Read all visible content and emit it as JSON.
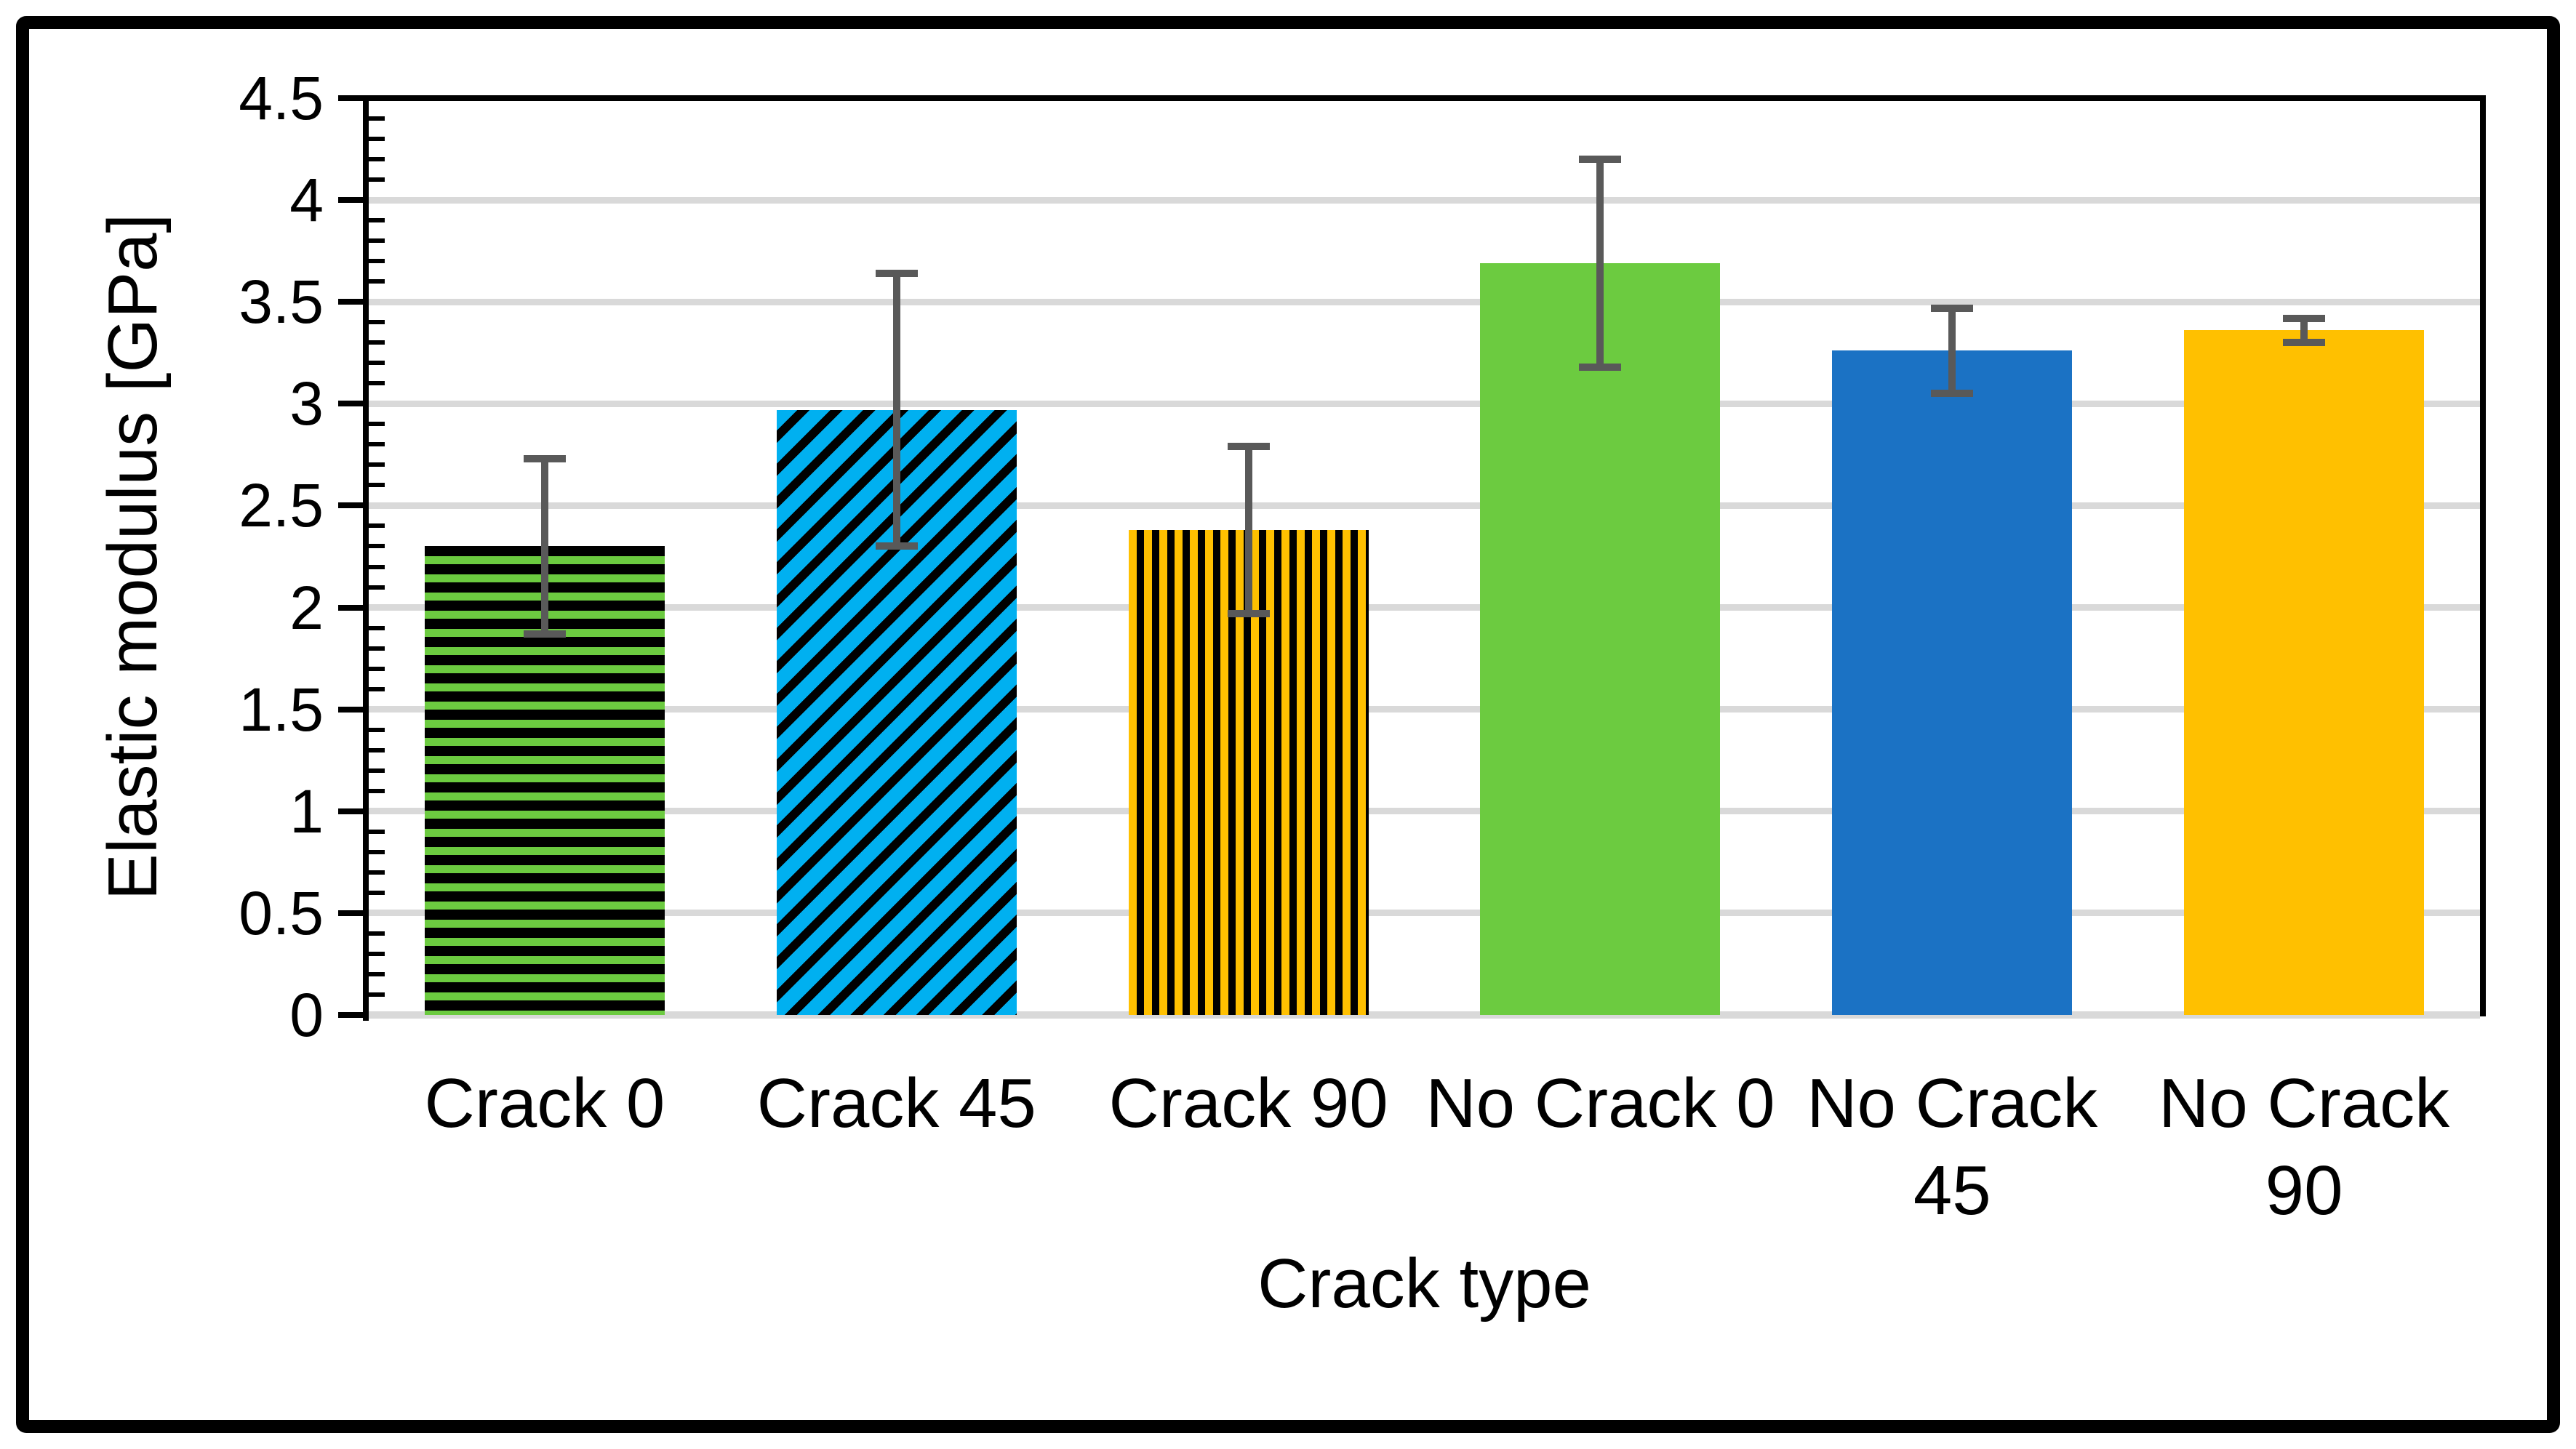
{
  "figure": {
    "background": "#ffffff",
    "border_color": "#000000"
  },
  "chart_data": {
    "type": "bar",
    "title": "",
    "xlabel": "Crack type",
    "ylabel": "Elastic modulus [GPa]",
    "ylim": [
      0,
      4.5
    ],
    "ytick_step": 0.5,
    "yminor_step": 0.1,
    "ytick_labels": [
      "0",
      "0.5",
      "1",
      "1.5",
      "2",
      "2.5",
      "3",
      "3.5",
      "4",
      "4.5"
    ],
    "grid": "horizontal-major",
    "legend": "none",
    "categories": [
      "Crack 0",
      "Crack 45",
      "Crack 90",
      "No Crack 0",
      "No Crack 45",
      "No Crack 90"
    ],
    "category_label_lines": [
      [
        "Crack 0"
      ],
      [
        "Crack 45"
      ],
      [
        "Crack 90"
      ],
      [
        "No Crack 0"
      ],
      [
        "No Crack",
        "45"
      ],
      [
        "No Crack",
        "90"
      ]
    ],
    "series": [
      {
        "name": "Elastic modulus",
        "values": [
          2.3,
          2.97,
          2.38,
          3.69,
          3.26,
          3.36
        ],
        "errors": [
          0.44,
          0.68,
          0.42,
          0.52,
          0.22,
          0.07
        ]
      }
    ],
    "bar_styles": [
      {
        "pattern": "horizontal-stripes",
        "fill": "#6CCB40",
        "stripe": "#000000"
      },
      {
        "pattern": "diagonal-stripes",
        "fill": "#00B0F0",
        "stripe": "#000000"
      },
      {
        "pattern": "vertical-stripes",
        "fill": "#FFC000",
        "stripe": "#000000"
      },
      {
        "pattern": "solid",
        "fill": "#6CCB40"
      },
      {
        "pattern": "solid",
        "fill": "#1B72C4"
      },
      {
        "pattern": "solid",
        "fill": "#FFC000"
      }
    ],
    "error_bar_color": "#595959",
    "gridline_color": "#D9D9D9",
    "axis_line_color": "#000000",
    "x_axis_line_color": "#D9D9D9"
  }
}
